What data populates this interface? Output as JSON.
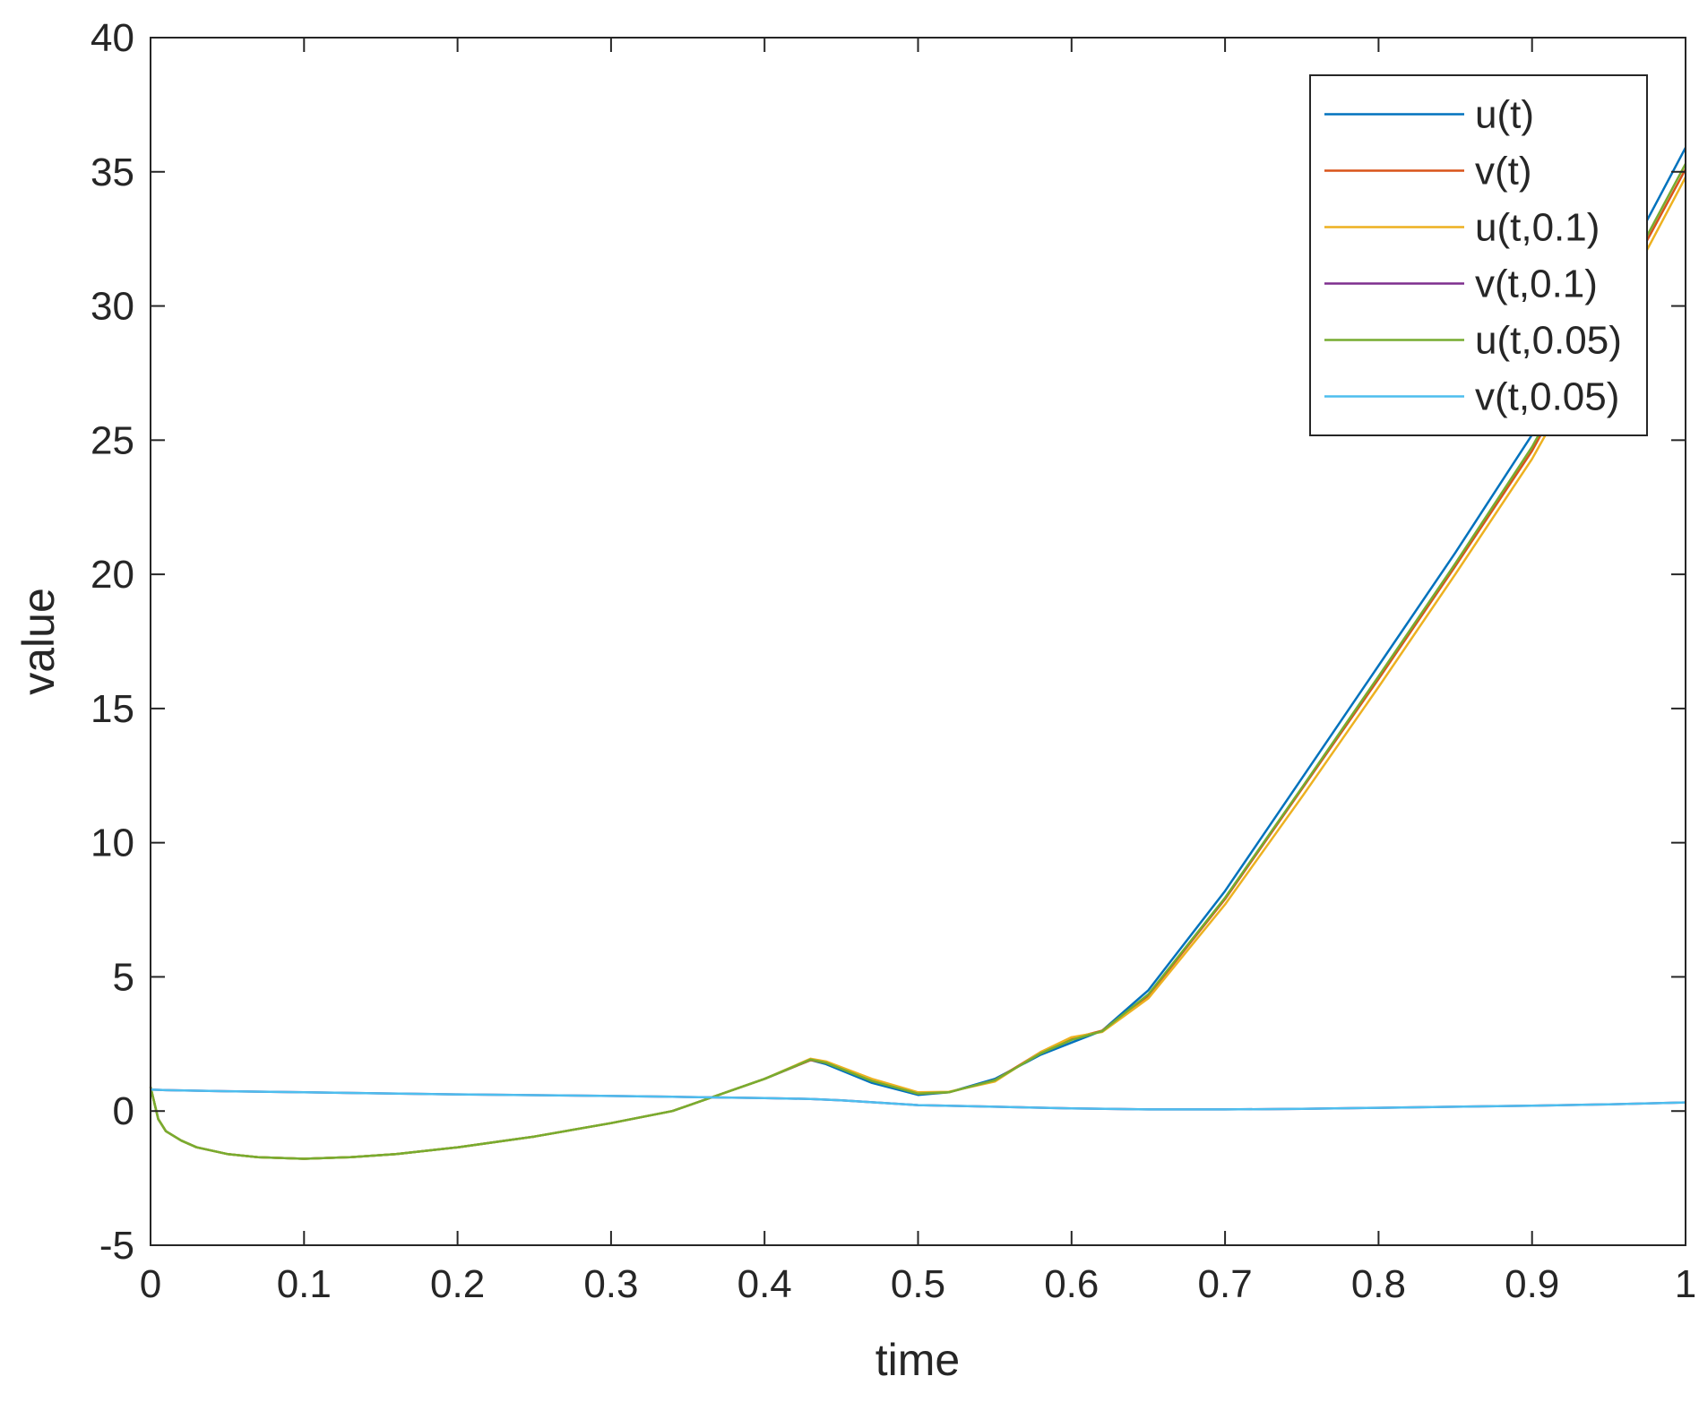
{
  "chart_data": {
    "type": "line",
    "title": "",
    "xlabel": "time",
    "ylabel": "value",
    "xlim": [
      0,
      1
    ],
    "ylim": [
      -5,
      40
    ],
    "xticks": [
      0,
      0.1,
      0.2,
      0.3,
      0.4,
      0.5,
      0.6,
      0.7,
      0.8,
      0.9,
      1
    ],
    "xtick_labels": [
      "0",
      "0.1",
      "0.2",
      "0.3",
      "0.4",
      "0.5",
      "0.6",
      "0.7",
      "0.8",
      "0.9",
      "1"
    ],
    "yticks": [
      -5,
      0,
      5,
      10,
      15,
      20,
      25,
      30,
      35,
      40
    ],
    "ytick_labels": [
      "-5",
      "0",
      "5",
      "10",
      "15",
      "20",
      "25",
      "30",
      "35",
      "40"
    ],
    "grid": false,
    "legend_position": "top-right",
    "series": [
      {
        "name": "u(t)",
        "color": "#0072BD",
        "x": [
          0,
          0.005,
          0.01,
          0.02,
          0.03,
          0.05,
          0.07,
          0.1,
          0.13,
          0.16,
          0.2,
          0.25,
          0.3,
          0.34,
          0.4,
          0.43,
          0.44,
          0.47,
          0.5,
          0.52,
          0.55,
          0.58,
          0.6,
          0.62,
          0.65,
          0.7,
          0.75,
          0.8,
          0.85,
          0.9,
          0.95,
          1.0
        ],
        "y": [
          0.9,
          -0.3,
          -0.75,
          -1.1,
          -1.35,
          -1.6,
          -1.72,
          -1.78,
          -1.72,
          -1.6,
          -1.35,
          -0.95,
          -0.45,
          0.0,
          1.2,
          1.9,
          1.75,
          1.05,
          0.6,
          0.7,
          1.2,
          2.1,
          2.55,
          3.0,
          4.5,
          8.2,
          12.4,
          16.6,
          20.8,
          25.2,
          30.5,
          35.9
        ]
      },
      {
        "name": "v(t)",
        "color": "#D95319",
        "x": [
          0,
          0.005,
          0.01,
          0.02,
          0.03,
          0.05,
          0.07,
          0.1,
          0.13,
          0.16,
          0.2,
          0.25,
          0.3,
          0.34,
          0.4,
          0.43,
          0.44,
          0.47,
          0.5,
          0.52,
          0.55,
          0.58,
          0.6,
          0.62,
          0.65,
          0.7,
          0.75,
          0.8,
          0.85,
          0.9,
          0.95,
          1.0
        ],
        "y": [
          0.9,
          -0.3,
          -0.75,
          -1.1,
          -1.35,
          -1.6,
          -1.72,
          -1.78,
          -1.72,
          -1.6,
          -1.35,
          -0.95,
          -0.45,
          0.0,
          1.2,
          1.9,
          1.8,
          1.15,
          0.65,
          0.7,
          1.15,
          2.2,
          2.7,
          3.0,
          4.3,
          7.9,
          12.0,
          16.1,
          20.3,
          24.6,
          29.8,
          35.1
        ]
      },
      {
        "name": "u(t,0.1)",
        "color": "#EDB120",
        "x": [
          0,
          0.005,
          0.01,
          0.02,
          0.03,
          0.05,
          0.07,
          0.1,
          0.13,
          0.16,
          0.2,
          0.25,
          0.3,
          0.34,
          0.4,
          0.43,
          0.44,
          0.47,
          0.5,
          0.52,
          0.55,
          0.58,
          0.6,
          0.62,
          0.65,
          0.7,
          0.75,
          0.8,
          0.85,
          0.9,
          0.95,
          1.0
        ],
        "y": [
          0.9,
          -0.3,
          -0.75,
          -1.1,
          -1.35,
          -1.6,
          -1.72,
          -1.78,
          -1.72,
          -1.6,
          -1.35,
          -0.95,
          -0.45,
          0.0,
          1.2,
          1.95,
          1.85,
          1.2,
          0.7,
          0.72,
          1.1,
          2.2,
          2.75,
          2.95,
          4.2,
          7.7,
          11.7,
          15.8,
          20.0,
          24.3,
          29.4,
          34.8
        ]
      },
      {
        "name": "v(t,0.1)",
        "color": "#7E2F8E",
        "x": [
          0,
          0.01,
          0.05,
          0.1,
          0.2,
          0.3,
          0.34,
          0.4,
          0.43,
          0.45,
          0.5,
          0.55,
          0.6,
          0.65,
          0.7,
          0.75,
          0.8,
          0.85,
          0.9,
          0.95,
          1.0
        ],
        "y": [
          0.8,
          0.78,
          0.74,
          0.7,
          0.62,
          0.56,
          0.53,
          0.48,
          0.45,
          0.4,
          0.22,
          0.16,
          0.1,
          0.06,
          0.06,
          0.08,
          0.12,
          0.16,
          0.2,
          0.25,
          0.32
        ]
      },
      {
        "name": "u(t,0.05)",
        "color": "#77AC30",
        "x": [
          0,
          0.005,
          0.01,
          0.02,
          0.03,
          0.05,
          0.07,
          0.1,
          0.13,
          0.16,
          0.2,
          0.25,
          0.3,
          0.34,
          0.4,
          0.43,
          0.44,
          0.47,
          0.5,
          0.52,
          0.55,
          0.58,
          0.6,
          0.62,
          0.65,
          0.7,
          0.75,
          0.8,
          0.85,
          0.9,
          0.95,
          1.0
        ],
        "y": [
          0.9,
          -0.3,
          -0.75,
          -1.1,
          -1.35,
          -1.6,
          -1.72,
          -1.78,
          -1.72,
          -1.6,
          -1.35,
          -0.95,
          -0.45,
          0.0,
          1.2,
          1.92,
          1.8,
          1.12,
          0.65,
          0.7,
          1.15,
          2.15,
          2.65,
          2.98,
          4.35,
          7.95,
          12.05,
          16.2,
          20.4,
          24.75,
          29.95,
          35.3
        ]
      },
      {
        "name": "v(t,0.05)",
        "color": "#4DBEEE",
        "x": [
          0,
          0.01,
          0.05,
          0.1,
          0.2,
          0.3,
          0.34,
          0.4,
          0.43,
          0.45,
          0.5,
          0.55,
          0.6,
          0.65,
          0.7,
          0.75,
          0.8,
          0.85,
          0.9,
          0.95,
          1.0
        ],
        "y": [
          0.8,
          0.78,
          0.74,
          0.7,
          0.62,
          0.56,
          0.53,
          0.48,
          0.45,
          0.4,
          0.22,
          0.16,
          0.1,
          0.06,
          0.06,
          0.08,
          0.12,
          0.16,
          0.2,
          0.25,
          0.32
        ]
      }
    ]
  }
}
